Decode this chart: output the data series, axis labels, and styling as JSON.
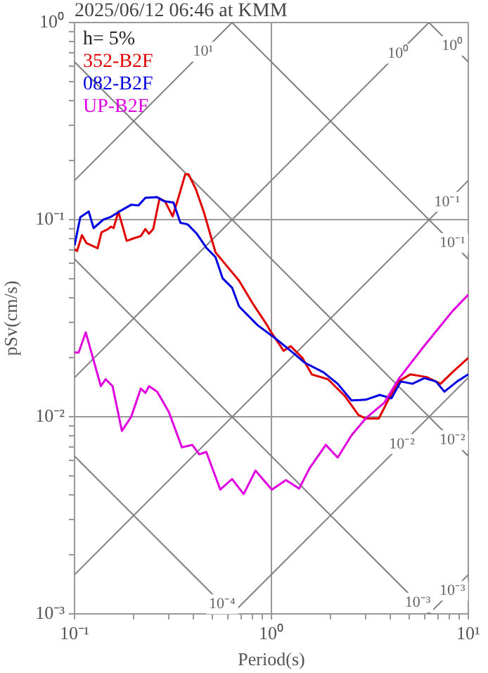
{
  "chart_data": {
    "type": "line",
    "title": "2025/06/12 06:46 at KMM",
    "xlabel": "Period(s)",
    "ylabel": "pSv(cm/s)",
    "log": "xy",
    "grid": true,
    "legend": "top left",
    "xlim": [
      0.1,
      10
    ],
    "ylim": [
      0.001,
      1
    ],
    "xticks": [
      {
        "value": 0.1,
        "label": "10⁻¹"
      },
      {
        "value": 0.2,
        "label": null
      },
      {
        "value": 0.3,
        "label": null
      },
      {
        "value": 0.4,
        "label": null
      },
      {
        "value": 0.5,
        "label": null
      },
      {
        "value": 0.6,
        "label": null
      },
      {
        "value": 0.7,
        "label": null
      },
      {
        "value": 0.8,
        "label": null
      },
      {
        "value": 0.9,
        "label": null
      },
      {
        "value": 1,
        "label": "10⁰"
      },
      {
        "value": 2,
        "label": null
      },
      {
        "value": 3,
        "label": null
      },
      {
        "value": 4,
        "label": null
      },
      {
        "value": 5,
        "label": null
      },
      {
        "value": 6,
        "label": null
      },
      {
        "value": 7,
        "label": null
      },
      {
        "value": 8,
        "label": null
      },
      {
        "value": 9,
        "label": null
      },
      {
        "value": 10,
        "label": "10¹"
      }
    ],
    "yticks": [
      {
        "value": 0.001,
        "label": "10⁻³"
      },
      {
        "value": 0.002,
        "label": null
      },
      {
        "value": 0.003,
        "label": null
      },
      {
        "value": 0.004,
        "label": null
      },
      {
        "value": 0.005,
        "label": null
      },
      {
        "value": 0.006,
        "label": null
      },
      {
        "value": 0.007,
        "label": null
      },
      {
        "value": 0.008,
        "label": null
      },
      {
        "value": 0.009,
        "label": null
      },
      {
        "value": 0.01,
        "label": "10⁻²"
      },
      {
        "value": 0.02,
        "label": null
      },
      {
        "value": 0.03,
        "label": null
      },
      {
        "value": 0.04,
        "label": null
      },
      {
        "value": 0.05,
        "label": null
      },
      {
        "value": 0.06,
        "label": null
      },
      {
        "value": 0.07,
        "label": null
      },
      {
        "value": 0.08,
        "label": null
      },
      {
        "value": 0.09,
        "label": null
      },
      {
        "value": 0.1,
        "label": "10⁻¹"
      },
      {
        "value": 0.2,
        "label": null
      },
      {
        "value": 0.3,
        "label": null
      },
      {
        "value": 0.4,
        "label": null
      },
      {
        "value": 0.5,
        "label": null
      },
      {
        "value": 0.6,
        "label": null
      },
      {
        "value": 0.7,
        "label": null
      },
      {
        "value": 0.8,
        "label": null
      },
      {
        "value": 0.9,
        "label": null
      },
      {
        "value": 1,
        "label": "10⁰"
      }
    ],
    "series": [
      {
        "color": "#808080",
        "x": [
          0.1,
          0.631
        ],
        "values": [
          0.00631,
          0.001
        ]
      },
      {
        "color": "#808080",
        "x": [
          0.1,
          6.31
        ],
        "values": [
          0.0631,
          0.001
        ]
      },
      {
        "color": "#808080",
        "x": [
          0.1,
          10
        ],
        "values": [
          0.631,
          0.00631
        ]
      },
      {
        "color": "#808080",
        "x": [
          0.631,
          10
        ],
        "values": [
          1,
          0.0631
        ]
      },
      {
        "color": "#808080",
        "x": [
          6.31,
          10
        ],
        "values": [
          1,
          0.631
        ]
      },
      {
        "color": "#808080",
        "x": [
          0.1,
          0.631
        ],
        "values": [
          0.158,
          1
        ]
      },
      {
        "color": "#808080",
        "x": [
          0.1,
          6.31
        ],
        "values": [
          0.0158,
          1
        ]
      },
      {
        "color": "#808080",
        "x": [
          0.1,
          10
        ],
        "values": [
          0.00158,
          0.158
        ]
      },
      {
        "color": "#808080",
        "x": [
          0.631,
          10
        ],
        "values": [
          0.001,
          0.0158
        ]
      },
      {
        "color": "#808080",
        "x": [
          6.31,
          10
        ],
        "values": [
          0.001,
          0.00158
        ]
      },
      {
        "name": "352-B2F",
        "color": "#e00000",
        "x": [
          0.1,
          0.103,
          0.109,
          0.115,
          0.131,
          0.137,
          0.148,
          0.153,
          0.158,
          0.167,
          0.184,
          0.2,
          0.217,
          0.229,
          0.239,
          0.251,
          0.27,
          0.288,
          0.315,
          0.336,
          0.365,
          0.379,
          0.413,
          0.454,
          0.52,
          0.597,
          0.685,
          0.807,
          0.952,
          0.979,
          1.154,
          1.253,
          1.436,
          1.603,
          1.94,
          2.35,
          2.77,
          3.01,
          3.51,
          3.96,
          4.42,
          5.07,
          6.14,
          7.23,
          8.3,
          10
        ],
        "values": [
          0.0708,
          0.0693,
          0.0834,
          0.076,
          0.0716,
          0.0862,
          0.0896,
          0.0921,
          0.0906,
          0.11,
          0.0781,
          0.0804,
          0.0825,
          0.0896,
          0.0848,
          0.0896,
          0.128,
          0.124,
          0.104,
          0.128,
          0.17,
          0.17,
          0.143,
          0.109,
          0.0682,
          0.0578,
          0.049,
          0.0373,
          0.0291,
          0.0276,
          0.0216,
          0.0228,
          0.0199,
          0.0164,
          0.0155,
          0.0128,
          0.0102,
          0.0098,
          0.0098,
          0.0124,
          0.0151,
          0.0164,
          0.0159,
          0.0147,
          0.0168,
          0.0199
        ]
      },
      {
        "name": "082-B2F",
        "color": "#0000e0",
        "x": [
          0.1,
          0.107,
          0.118,
          0.125,
          0.14,
          0.152,
          0.169,
          0.194,
          0.211,
          0.229,
          0.263,
          0.285,
          0.318,
          0.345,
          0.375,
          0.418,
          0.467,
          0.52,
          0.565,
          0.631,
          0.685,
          0.852,
          1.063,
          1.253,
          1.477,
          1.838,
          2.17,
          2.55,
          3.01,
          3.55,
          4.07,
          4.54,
          5.2,
          5.98,
          6.85,
          7.56,
          8.77,
          10
        ],
        "values": [
          0.074,
          0.103,
          0.11,
          0.0906,
          0.1,
          0.103,
          0.11,
          0.119,
          0.118,
          0.129,
          0.13,
          0.124,
          0.122,
          0.0963,
          0.0947,
          0.0848,
          0.072,
          0.0645,
          0.0504,
          0.0452,
          0.0363,
          0.0291,
          0.0247,
          0.0216,
          0.0188,
          0.0168,
          0.0147,
          0.0121,
          0.0122,
          0.0129,
          0.0124,
          0.0151,
          0.0147,
          0.0157,
          0.0151,
          0.0134,
          0.0151,
          0.0164
        ]
      },
      {
        "name": "UP-B2F",
        "color": "#e000e0",
        "x": [
          0.1,
          0.105,
          0.114,
          0.124,
          0.136,
          0.144,
          0.156,
          0.174,
          0.194,
          0.217,
          0.229,
          0.239,
          0.263,
          0.301,
          0.351,
          0.396,
          0.43,
          0.467,
          0.55,
          0.631,
          0.723,
          0.83,
          1.005,
          1.185,
          1.383,
          1.56,
          1.89,
          2.17,
          2.55,
          3.01,
          3.75,
          4.42,
          5.81,
          8.3,
          10
        ],
        "values": [
          0.0212,
          0.0212,
          0.0268,
          0.0199,
          0.0143,
          0.0155,
          0.0143,
          0.00848,
          0.01,
          0.0139,
          0.0132,
          0.0143,
          0.0134,
          0.0106,
          0.007,
          0.0072,
          0.00645,
          0.00663,
          0.00427,
          0.00483,
          0.00405,
          0.00533,
          0.00427,
          0.00477,
          0.00432,
          0.00547,
          0.0072,
          0.00621,
          0.00804,
          0.0098,
          0.0118,
          0.0155,
          0.0221,
          0.0343,
          0.0416
        ]
      }
    ],
    "annotations": [
      "h= 5%",
      {
        "text": "10¹",
        "x": 0.45,
        "y": 0.711
      },
      {
        "text": "10⁰",
        "x": 4.4,
        "y": 0.695
      },
      {
        "text": "10⁰",
        "x": 8.3,
        "y": 0.76
      },
      {
        "text": "10⁻¹",
        "x": 7.8,
        "y": 0.123
      },
      {
        "text": "10⁻¹",
        "x": 8.3,
        "y": 0.076
      },
      {
        "text": "10⁻²",
        "x": 4.6,
        "y": 0.00727
      },
      {
        "text": "10⁻²",
        "x": 8.3,
        "y": 0.0076
      },
      {
        "text": "10⁻⁴",
        "x": 0.562,
        "y": 0.00112
      },
      {
        "text": "10⁻³",
        "x": 5.53,
        "y": 0.00114
      },
      {
        "text": "10⁻³",
        "x": 8.3,
        "y": 0.00131
      }
    ]
  }
}
